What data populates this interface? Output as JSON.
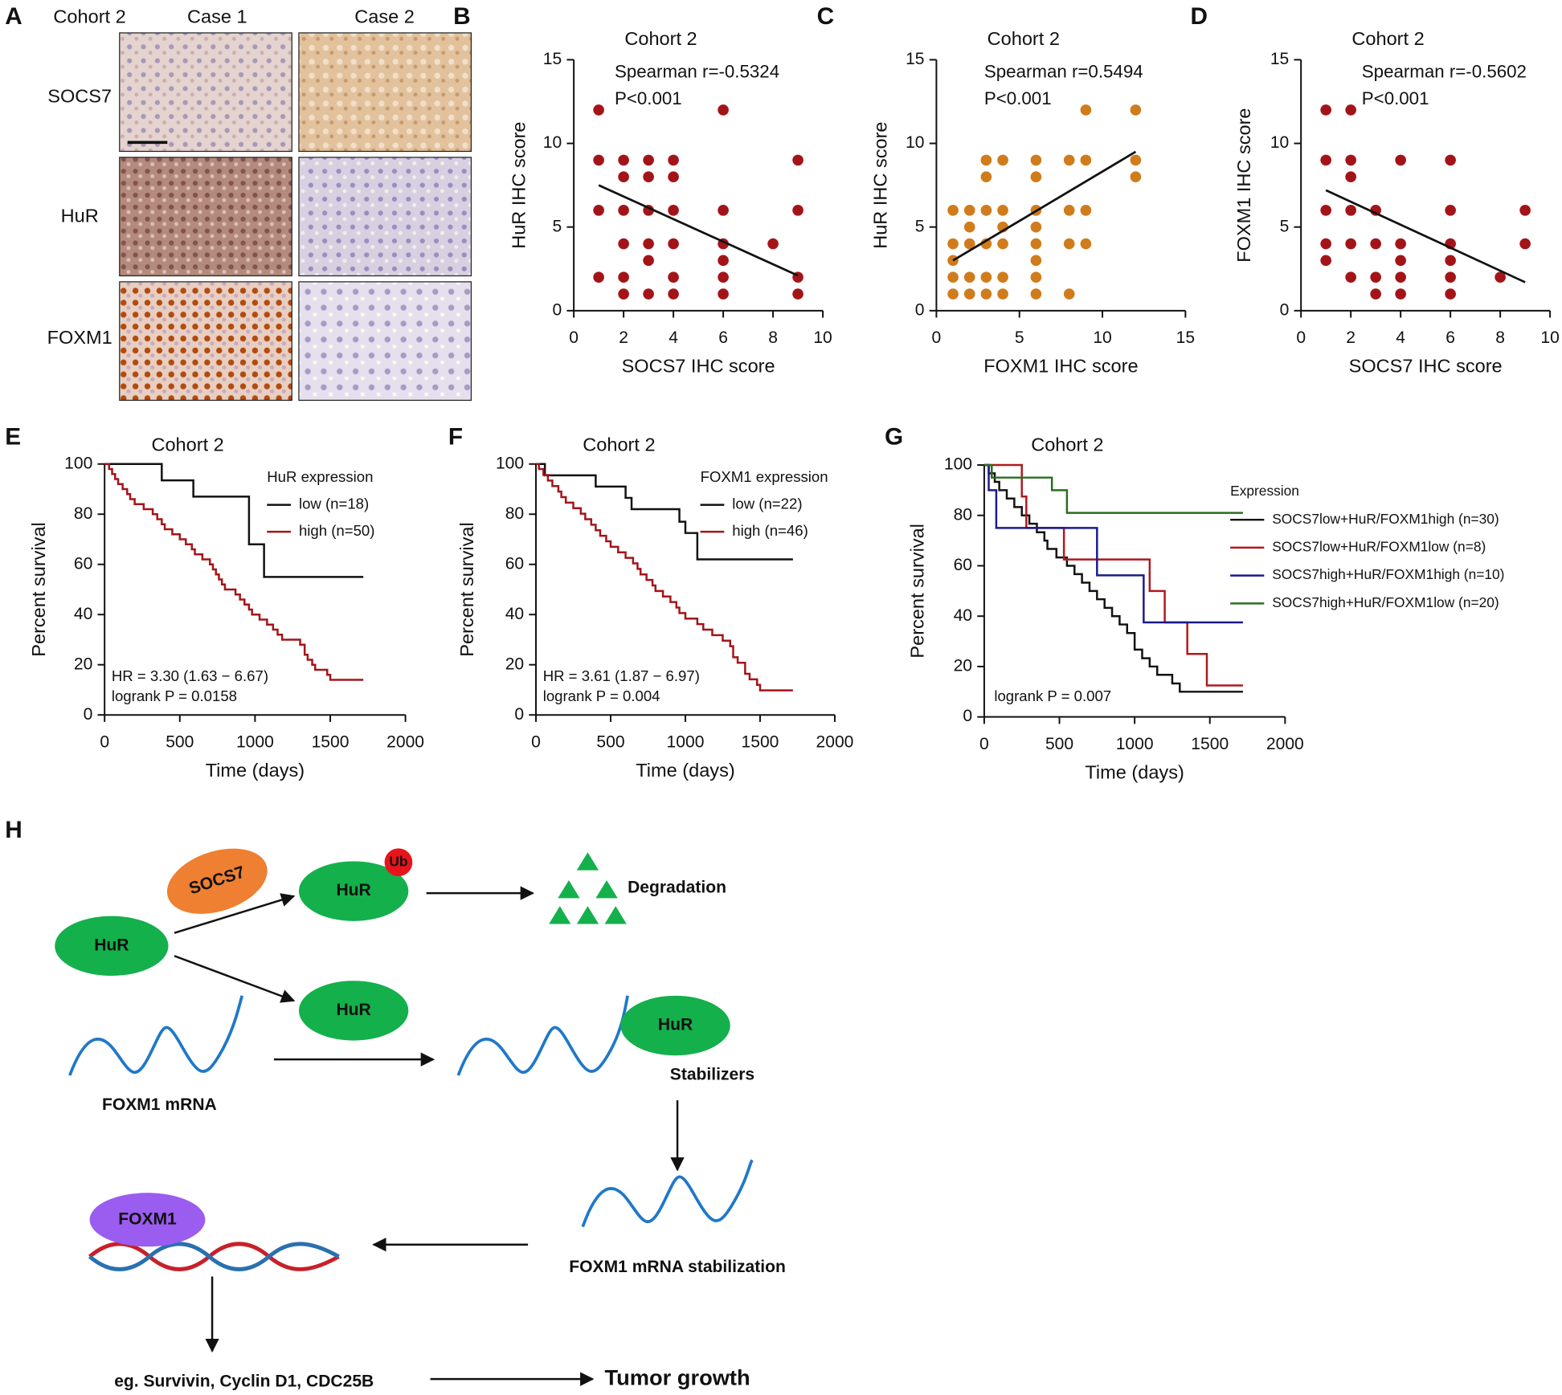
{
  "panel_a": {
    "panel": "A",
    "cohort": "Cohort 2",
    "columns": [
      "Case 1",
      "Case 2"
    ],
    "rows": [
      "SOCS7",
      "HuR",
      "FOXM1"
    ]
  },
  "chart_data": [
    {
      "type": "scatter",
      "panel": "B",
      "subtitle": "Cohort 2",
      "annotations": [
        "Spearman r=-0.5324",
        "P<0.001"
      ],
      "x_label": "SOCS7 IHC score",
      "y_label": "HuR IHC score",
      "xlim": [
        0,
        10
      ],
      "xticks": [
        0,
        2,
        4,
        6,
        8,
        10
      ],
      "ylim": [
        0,
        15
      ],
      "yticks": [
        0,
        5,
        10,
        15
      ],
      "color": "#a31419",
      "x": [
        1,
        1,
        1,
        1,
        2,
        2,
        2,
        2,
        2,
        2,
        3,
        3,
        3,
        3,
        3,
        3,
        4,
        4,
        4,
        4,
        4,
        4,
        6,
        6,
        6,
        6,
        6,
        6,
        8,
        9,
        9,
        9,
        9
      ],
      "values": [
        12,
        9,
        6,
        2,
        9,
        8,
        6,
        4,
        2,
        1,
        9,
        8,
        6,
        4,
        3,
        1,
        9,
        8,
        6,
        4,
        2,
        1,
        12,
        6,
        4,
        3,
        2,
        1,
        4,
        9,
        6,
        2,
        1
      ],
      "fit": {
        "x": [
          1,
          9
        ],
        "y": [
          7.5,
          2.1
        ]
      }
    },
    {
      "type": "scatter",
      "panel": "C",
      "subtitle": "Cohort 2",
      "annotations": [
        "Spearman r=0.5494",
        "P<0.001"
      ],
      "x_label": "FOXM1 IHC score",
      "y_label": "HuR IHC score",
      "xlim": [
        0,
        15
      ],
      "xticks": [
        0,
        5,
        10,
        15
      ],
      "ylim": [
        0,
        15
      ],
      "yticks": [
        0,
        5,
        10,
        15
      ],
      "color": "#d07c1c",
      "x": [
        1,
        1,
        1,
        1,
        1,
        2,
        2,
        2,
        2,
        2,
        3,
        3,
        3,
        3,
        3,
        3,
        4,
        4,
        4,
        4,
        4,
        4,
        6,
        6,
        6,
        6,
        6,
        6,
        6,
        6,
        8,
        8,
        8,
        8,
        9,
        9,
        9,
        9,
        12,
        12,
        12
      ],
      "values": [
        6,
        4,
        3,
        2,
        1,
        6,
        5,
        4,
        2,
        1,
        9,
        8,
        6,
        4,
        2,
        1,
        9,
        6,
        5,
        4,
        2,
        1,
        9,
        8,
        6,
        5,
        4,
        3,
        2,
        1,
        9,
        6,
        4,
        1,
        12,
        9,
        6,
        4,
        12,
        9,
        8
      ],
      "fit": {
        "x": [
          1,
          12
        ],
        "y": [
          3,
          9.5
        ]
      }
    },
    {
      "type": "scatter",
      "panel": "D",
      "subtitle": "Cohort 2",
      "annotations": [
        "Spearman r=-0.5602",
        "P<0.001"
      ],
      "x_label": "SOCS7 IHC score",
      "y_label": "FOXM1 IHC score",
      "xlim": [
        0,
        10
      ],
      "xticks": [
        0,
        2,
        4,
        6,
        8,
        10
      ],
      "ylim": [
        0,
        15
      ],
      "yticks": [
        0,
        5,
        10,
        15
      ],
      "color": "#a31419",
      "x": [
        1,
        1,
        1,
        1,
        1,
        2,
        2,
        2,
        2,
        2,
        2,
        3,
        3,
        3,
        3,
        4,
        4,
        4,
        4,
        4,
        6,
        6,
        6,
        6,
        6,
        6,
        8,
        9,
        9
      ],
      "values": [
        12,
        9,
        6,
        4,
        3,
        12,
        9,
        8,
        6,
        4,
        2,
        6,
        4,
        2,
        1,
        9,
        4,
        3,
        2,
        1,
        9,
        6,
        4,
        3,
        2,
        1,
        2,
        6,
        4
      ],
      "fit": {
        "x": [
          1,
          9
        ],
        "y": [
          7.2,
          1.7
        ]
      }
    },
    {
      "type": "line",
      "step": true,
      "panel": "E",
      "subtitle": "Cohort 2",
      "legend_title": "HuR expression",
      "annotations": [
        "HR = 3.30 (1.63 − 6.67)",
        "logrank P = 0.0158"
      ],
      "x_label": "Time (days)",
      "y_label": "Percent survival",
      "xlim": [
        0,
        2000
      ],
      "xticks": [
        0,
        500,
        1000,
        1500,
        2000
      ],
      "ylim": [
        0,
        100
      ],
      "yticks": [
        0,
        20,
        40,
        60,
        80,
        100
      ],
      "series": [
        {
          "name": "low (n=18)",
          "color": "#111111",
          "x": [
            0,
            380,
            590,
            960,
            1060,
            1720
          ],
          "values": [
            100,
            93.5,
            87,
            68,
            55,
            55
          ]
        },
        {
          "name": "high (n=50)",
          "color": "#a31419",
          "x": [
            0,
            30,
            50,
            70,
            90,
            120,
            150,
            170,
            200,
            260,
            320,
            350,
            380,
            400,
            450,
            500,
            540,
            580,
            600,
            650,
            700,
            720,
            740,
            760,
            780,
            800,
            870,
            900,
            930,
            960,
            980,
            1030,
            1080,
            1120,
            1150,
            1180,
            1300,
            1330,
            1350,
            1380,
            1400,
            1480,
            1500,
            1720
          ],
          "values": [
            100,
            98,
            96,
            94,
            92,
            90,
            88,
            86,
            84,
            82,
            80,
            78,
            76,
            74,
            72,
            70,
            68,
            66,
            64,
            62,
            60,
            58,
            56,
            54,
            52,
            50,
            48,
            46,
            44,
            42,
            40,
            38,
            36,
            34,
            32,
            30,
            28,
            24,
            22,
            20,
            18,
            16,
            14,
            14
          ]
        }
      ]
    },
    {
      "type": "line",
      "step": true,
      "panel": "F",
      "subtitle": "Cohort 2",
      "legend_title": "FOXM1 expression",
      "annotations": [
        "HR = 3.61 (1.87 − 6.97)",
        "logrank P = 0.004"
      ],
      "x_label": "Time (days)",
      "y_label": "Percent survival",
      "xlim": [
        0,
        2000
      ],
      "xticks": [
        0,
        500,
        1000,
        1500,
        2000
      ],
      "ylim": [
        0,
        100
      ],
      "yticks": [
        0,
        20,
        40,
        60,
        80,
        100
      ],
      "series": [
        {
          "name": "low (n=22)",
          "color": "#111111",
          "x": [
            0,
            60,
            400,
            600,
            640,
            960,
            1000,
            1080,
            1720
          ],
          "values": [
            100,
            95.5,
            91,
            86.5,
            82,
            77,
            72.5,
            62,
            62
          ]
        },
        {
          "name": "high (n=46)",
          "color": "#a31419",
          "x": [
            0,
            20,
            50,
            80,
            110,
            150,
            170,
            200,
            250,
            300,
            330,
            370,
            400,
            430,
            470,
            500,
            550,
            600,
            650,
            680,
            700,
            740,
            780,
            800,
            850,
            900,
            940,
            960,
            1000,
            1080,
            1120,
            1180,
            1250,
            1300,
            1320,
            1350,
            1400,
            1430,
            1480,
            1500,
            1720
          ],
          "values": [
            100,
            98,
            95.6,
            93.4,
            91.2,
            89,
            86.8,
            84.6,
            82.4,
            80.2,
            78,
            75.8,
            73.6,
            71.4,
            69.2,
            67,
            64.8,
            62.6,
            60.4,
            58.2,
            56,
            53.8,
            51.6,
            49.4,
            47.2,
            45,
            42.8,
            40.6,
            38.4,
            36.2,
            34,
            31.8,
            29.6,
            27.4,
            23,
            20.8,
            16.4,
            14.2,
            12,
            9.8,
            9.8
          ]
        }
      ]
    },
    {
      "type": "line",
      "step": true,
      "panel": "G",
      "subtitle": "Cohort 2",
      "legend_title": "Expression",
      "annotations": [
        "logrank P = 0.007"
      ],
      "x_label": "Time (days)",
      "y_label": "Percent survival",
      "xlim": [
        0,
        2000
      ],
      "xticks": [
        0,
        500,
        1000,
        1500,
        2000
      ],
      "ylim": [
        0,
        100
      ],
      "yticks": [
        0,
        20,
        40,
        60,
        80,
        100
      ],
      "series": [
        {
          "name": "SOCS7low+HuR/FOXM1high (n=30)",
          "color": "#111111",
          "x": [
            0,
            30,
            70,
            100,
            150,
            200,
            250,
            300,
            350,
            400,
            420,
            480,
            550,
            600,
            650,
            700,
            750,
            800,
            850,
            900,
            950,
            1000,
            1050,
            1100,
            1150,
            1250,
            1300,
            1720
          ],
          "values": [
            100,
            96.7,
            93.3,
            90,
            86.7,
            83.3,
            80,
            76.7,
            73.3,
            70,
            66.7,
            63.3,
            60,
            56.7,
            53.3,
            50,
            46.7,
            43.3,
            40,
            36.7,
            33.3,
            26.7,
            23.3,
            20,
            16.7,
            13.3,
            10,
            10
          ]
        },
        {
          "name": "SOCS7low+HuR/FOXM1low (n=8)",
          "color": "#b0191e",
          "x": [
            0,
            250,
            280,
            530,
            1100,
            1200,
            1350,
            1480,
            1720
          ],
          "values": [
            100,
            87.5,
            75,
            62.5,
            50,
            37.5,
            25,
            12.5,
            12.5
          ]
        },
        {
          "name": "SOCS7high+HuR/FOXM1high (n=10)",
          "color": "#1a1a8c",
          "x": [
            0,
            30,
            80,
            750,
            1060,
            1720
          ],
          "values": [
            100,
            90,
            75,
            56.2,
            37.5,
            37.5
          ]
        },
        {
          "name": "SOCS7high+HuR/FOXM1low (n=20)",
          "color": "#2a6e1e",
          "x": [
            0,
            50,
            450,
            550,
            1720
          ],
          "values": [
            100,
            95,
            90,
            81,
            81
          ]
        }
      ]
    }
  ],
  "diagram": {
    "panel": "H",
    "nodes": [
      {
        "label": "SOCS7"
      },
      {
        "label": "HuR"
      },
      {
        "label": "Ub"
      },
      {
        "label": "Degradation"
      },
      {
        "label": "HuR"
      },
      {
        "label": "HuR"
      },
      {
        "label": "FOXM1 mRNA"
      },
      {
        "label": "HuR"
      },
      {
        "label": "Stabilizers"
      },
      {
        "label": "FOXM1 mRNA stabilization"
      },
      {
        "label": "FOXM1"
      },
      {
        "label": "eg. Survivin, Cyclin D1, CDC25B"
      },
      {
        "label": "Tumor growth"
      }
    ]
  }
}
